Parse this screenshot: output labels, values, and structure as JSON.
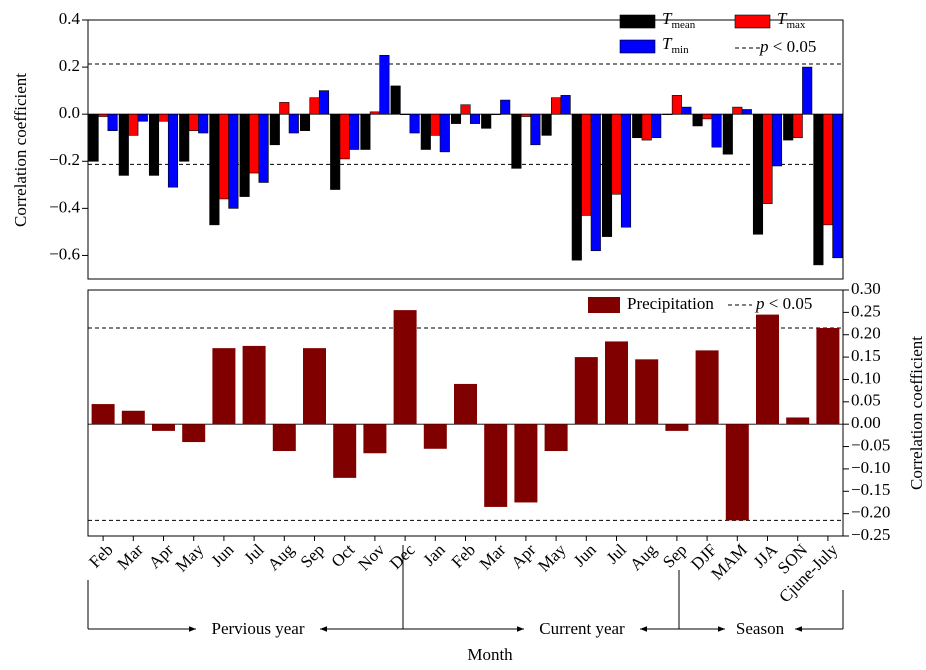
{
  "chart_data": [
    {
      "type": "grouped-bar",
      "ylabel": "Correlation coefficient",
      "yaxis_side": "left",
      "ylim": [
        -0.7,
        0.4
      ],
      "yticks": [
        {
          "value": -0.6,
          "label": "−0.6"
        },
        {
          "value": -0.4,
          "label": "−0.4"
        },
        {
          "value": -0.2,
          "label": "−0.2"
        },
        {
          "value": 0,
          "label": "0.0"
        },
        0.2,
        0.4
      ],
      "threshold_lines": [
        0.213,
        -0.213
      ],
      "threshold_label": "p < 0.05",
      "series": [
        {
          "name": "Tmean",
          "color": "#000000",
          "values": [
            -0.2,
            -0.26,
            -0.26,
            -0.2,
            -0.47,
            -0.35,
            -0.13,
            -0.07,
            -0.32,
            -0.15,
            0.12,
            -0.15,
            -0.04,
            -0.06,
            -0.23,
            -0.09,
            -0.62,
            -0.52,
            -0.1,
            0,
            -0.05,
            -0.17,
            -0.51,
            -0.11,
            -0.64
          ]
        },
        {
          "name": "Tmax",
          "color": "#ff0000",
          "values": [
            -0.01,
            -0.09,
            -0.03,
            -0.07,
            -0.36,
            -0.25,
            0.05,
            0.07,
            -0.19,
            0.01,
            0,
            -0.09,
            0.04,
            0,
            -0.01,
            0.07,
            -0.43,
            -0.34,
            -0.11,
            0.08,
            -0.02,
            0.03,
            -0.38,
            -0.1,
            -0.47
          ]
        },
        {
          "name": "Tmin",
          "color": "#0000ff",
          "values": [
            -0.07,
            -0.03,
            -0.31,
            -0.08,
            -0.4,
            -0.29,
            -0.08,
            0.1,
            -0.15,
            0.25,
            -0.08,
            -0.16,
            -0.04,
            0.06,
            -0.13,
            0.08,
            -0.58,
            -0.48,
            -0.1,
            0.03,
            -0.14,
            0.02,
            -0.22,
            0.2,
            -0.61
          ]
        }
      ]
    },
    {
      "type": "bar",
      "ylabel": "Correlation coefficient",
      "yaxis_side": "right",
      "ylim": [
        -0.25,
        0.3
      ],
      "yticks": [
        {
          "value": -0.25,
          "label": "−0.25"
        },
        {
          "value": -0.2,
          "label": "−0.20"
        },
        {
          "value": -0.15,
          "label": "−0.15"
        },
        {
          "value": -0.1,
          "label": "−0.10"
        },
        {
          "value": -0.05,
          "label": "−0.05"
        },
        {
          "value": 0,
          "label": "0.00"
        },
        0.05,
        {
          "value": 0.1,
          "label": "0.10"
        },
        0.15,
        {
          "value": 0.2,
          "label": "0.20"
        },
        0.25,
        {
          "value": 0.3,
          "label": "0.30"
        }
      ],
      "threshold_lines": [
        0.215,
        -0.215
      ],
      "threshold_label": "p < 0.05",
      "categories": [
        "Feb",
        "Mar",
        "Apr",
        "May",
        "Jun",
        "Jul",
        "Aug",
        "Sep",
        "Oct",
        "Nov",
        "Dec",
        "Jan",
        "Feb",
        "Mar",
        "Apr",
        "May",
        "Jun",
        "Jul",
        "Aug",
        "Sep",
        "DJF",
        "MAM",
        "JJA",
        "SON",
        "Cjune-July"
      ],
      "series": [
        {
          "name": "Precipitation",
          "color": "#800000",
          "values": [
            0.045,
            0.03,
            -0.015,
            -0.04,
            0.17,
            0.175,
            -0.06,
            0.17,
            -0.12,
            -0.065,
            0.255,
            -0.055,
            0.09,
            -0.185,
            -0.175,
            -0.06,
            0.15,
            0.185,
            0.145,
            -0.015,
            0.165,
            -0.215,
            0.245,
            0.015,
            0.215
          ]
        }
      ],
      "xlabel": "Month",
      "annotations": [
        "Pervious year",
        "Current year",
        "Season"
      ]
    }
  ]
}
